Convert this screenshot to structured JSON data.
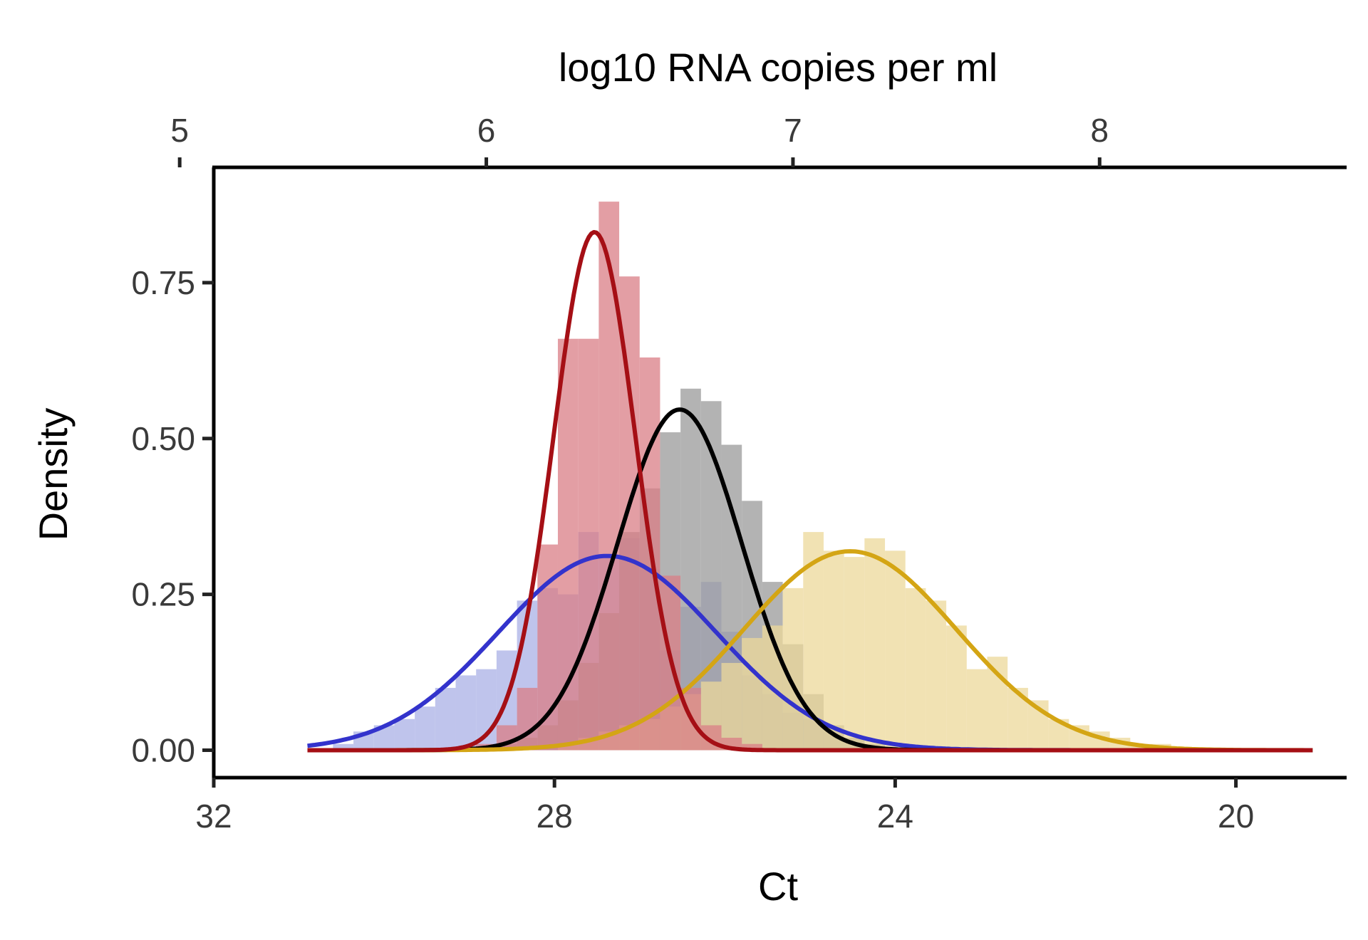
{
  "chart_data": {
    "type": "histogram",
    "title": "",
    "xlabel": "Ct",
    "ylabel": "Density",
    "x2label": "log10 RNA copies per ml",
    "x_reversed": true,
    "xlim": [
      32,
      18.7
    ],
    "ylim": [
      -0.044,
      0.935
    ],
    "x_ticks": [
      32,
      28,
      24,
      20
    ],
    "y_ticks": [
      0.0,
      0.25,
      0.5,
      0.75
    ],
    "y_tick_labels": [
      "0.00",
      "0.25",
      "0.50",
      "0.75"
    ],
    "x2_ticks": [
      5,
      6,
      7,
      8
    ],
    "x2_to_ct": [
      32.4,
      28.8,
      25.2,
      21.6
    ],
    "grid": false,
    "legend": "none",
    "bin_width": 0.24,
    "series": [
      {
        "color": "#3333cc",
        "fill": "#aab0e6",
        "fit": {
          "mean": 27.38,
          "sd": 1.28
        },
        "bins": [
          {
            "x": 30.48,
            "y": 0.01
          },
          {
            "x": 30.24,
            "y": 0.03
          },
          {
            "x": 30.0,
            "y": 0.04
          },
          {
            "x": 29.76,
            "y": 0.05
          },
          {
            "x": 29.52,
            "y": 0.07
          },
          {
            "x": 29.28,
            "y": 0.1
          },
          {
            "x": 29.04,
            "y": 0.12
          },
          {
            "x": 28.8,
            "y": 0.13
          },
          {
            "x": 28.56,
            "y": 0.16
          },
          {
            "x": 28.32,
            "y": 0.24
          },
          {
            "x": 28.08,
            "y": 0.26
          },
          {
            "x": 27.84,
            "y": 0.25
          },
          {
            "x": 27.6,
            "y": 0.35
          },
          {
            "x": 27.36,
            "y": 0.31
          },
          {
            "x": 27.12,
            "y": 0.34
          },
          {
            "x": 26.88,
            "y": 0.29
          },
          {
            "x": 26.64,
            "y": 0.16
          },
          {
            "x": 26.4,
            "y": 0.23
          },
          {
            "x": 26.16,
            "y": 0.27
          },
          {
            "x": 25.92,
            "y": 0.19
          },
          {
            "x": 25.68,
            "y": 0.12
          },
          {
            "x": 25.44,
            "y": 0.09
          },
          {
            "x": 25.2,
            "y": 0.06
          },
          {
            "x": 24.96,
            "y": 0.05
          },
          {
            "x": 24.72,
            "y": 0.03
          },
          {
            "x": 24.48,
            "y": 0.02
          },
          {
            "x": 24.24,
            "y": 0.01
          }
        ]
      },
      {
        "color": "#000000",
        "fill": "#999999",
        "fit": {
          "mean": 26.53,
          "sd": 0.73
        },
        "bins": [
          {
            "x": 28.56,
            "y": 0.01
          },
          {
            "x": 28.32,
            "y": 0.02
          },
          {
            "x": 28.08,
            "y": 0.04
          },
          {
            "x": 27.84,
            "y": 0.08
          },
          {
            "x": 27.6,
            "y": 0.14
          },
          {
            "x": 27.36,
            "y": 0.22
          },
          {
            "x": 27.12,
            "y": 0.35
          },
          {
            "x": 26.88,
            "y": 0.42
          },
          {
            "x": 26.64,
            "y": 0.51
          },
          {
            "x": 26.4,
            "y": 0.58
          },
          {
            "x": 26.16,
            "y": 0.56
          },
          {
            "x": 25.92,
            "y": 0.49
          },
          {
            "x": 25.68,
            "y": 0.4
          },
          {
            "x": 25.44,
            "y": 0.27
          },
          {
            "x": 25.2,
            "y": 0.17
          },
          {
            "x": 24.96,
            "y": 0.09
          },
          {
            "x": 24.72,
            "y": 0.04
          },
          {
            "x": 24.48,
            "y": 0.02
          },
          {
            "x": 24.24,
            "y": 0.01
          }
        ]
      },
      {
        "color": "#d4a514",
        "fill": "#ecd89a",
        "fit": {
          "mean": 24.53,
          "sd": 1.25
        },
        "bins": [
          {
            "x": 27.84,
            "y": 0.01
          },
          {
            "x": 27.6,
            "y": 0.02
          },
          {
            "x": 27.36,
            "y": 0.03
          },
          {
            "x": 27.12,
            "y": 0.04
          },
          {
            "x": 26.88,
            "y": 0.05
          },
          {
            "x": 26.64,
            "y": 0.07
          },
          {
            "x": 26.4,
            "y": 0.09
          },
          {
            "x": 26.16,
            "y": 0.11
          },
          {
            "x": 25.92,
            "y": 0.14
          },
          {
            "x": 25.68,
            "y": 0.18
          },
          {
            "x": 25.44,
            "y": 0.2
          },
          {
            "x": 25.2,
            "y": 0.26
          },
          {
            "x": 24.96,
            "y": 0.35
          },
          {
            "x": 24.72,
            "y": 0.32
          },
          {
            "x": 24.48,
            "y": 0.31
          },
          {
            "x": 24.24,
            "y": 0.34
          },
          {
            "x": 24.0,
            "y": 0.32
          },
          {
            "x": 23.76,
            "y": 0.26
          },
          {
            "x": 23.52,
            "y": 0.24
          },
          {
            "x": 23.28,
            "y": 0.2
          },
          {
            "x": 23.04,
            "y": 0.13
          },
          {
            "x": 22.8,
            "y": 0.15
          },
          {
            "x": 22.56,
            "y": 0.1
          },
          {
            "x": 22.32,
            "y": 0.08
          },
          {
            "x": 22.08,
            "y": 0.05
          },
          {
            "x": 21.84,
            "y": 0.04
          },
          {
            "x": 21.6,
            "y": 0.03
          },
          {
            "x": 21.36,
            "y": 0.02
          },
          {
            "x": 21.12,
            "y": 0.01
          },
          {
            "x": 20.88,
            "y": 0.01
          }
        ]
      },
      {
        "color": "#a50f15",
        "fill": "#d97d86",
        "fit": {
          "mean": 27.53,
          "sd": 0.48
        },
        "bins": [
          {
            "x": 28.8,
            "y": 0.01
          },
          {
            "x": 28.56,
            "y": 0.04
          },
          {
            "x": 28.32,
            "y": 0.1
          },
          {
            "x": 28.08,
            "y": 0.33
          },
          {
            "x": 27.84,
            "y": 0.66
          },
          {
            "x": 27.6,
            "y": 0.66
          },
          {
            "x": 27.36,
            "y": 0.88
          },
          {
            "x": 27.12,
            "y": 0.76
          },
          {
            "x": 26.88,
            "y": 0.63
          },
          {
            "x": 26.64,
            "y": 0.28
          },
          {
            "x": 26.4,
            "y": 0.1
          },
          {
            "x": 26.16,
            "y": 0.04
          },
          {
            "x": 25.92,
            "y": 0.02
          },
          {
            "x": 25.68,
            "y": 0.01
          }
        ]
      }
    ]
  }
}
